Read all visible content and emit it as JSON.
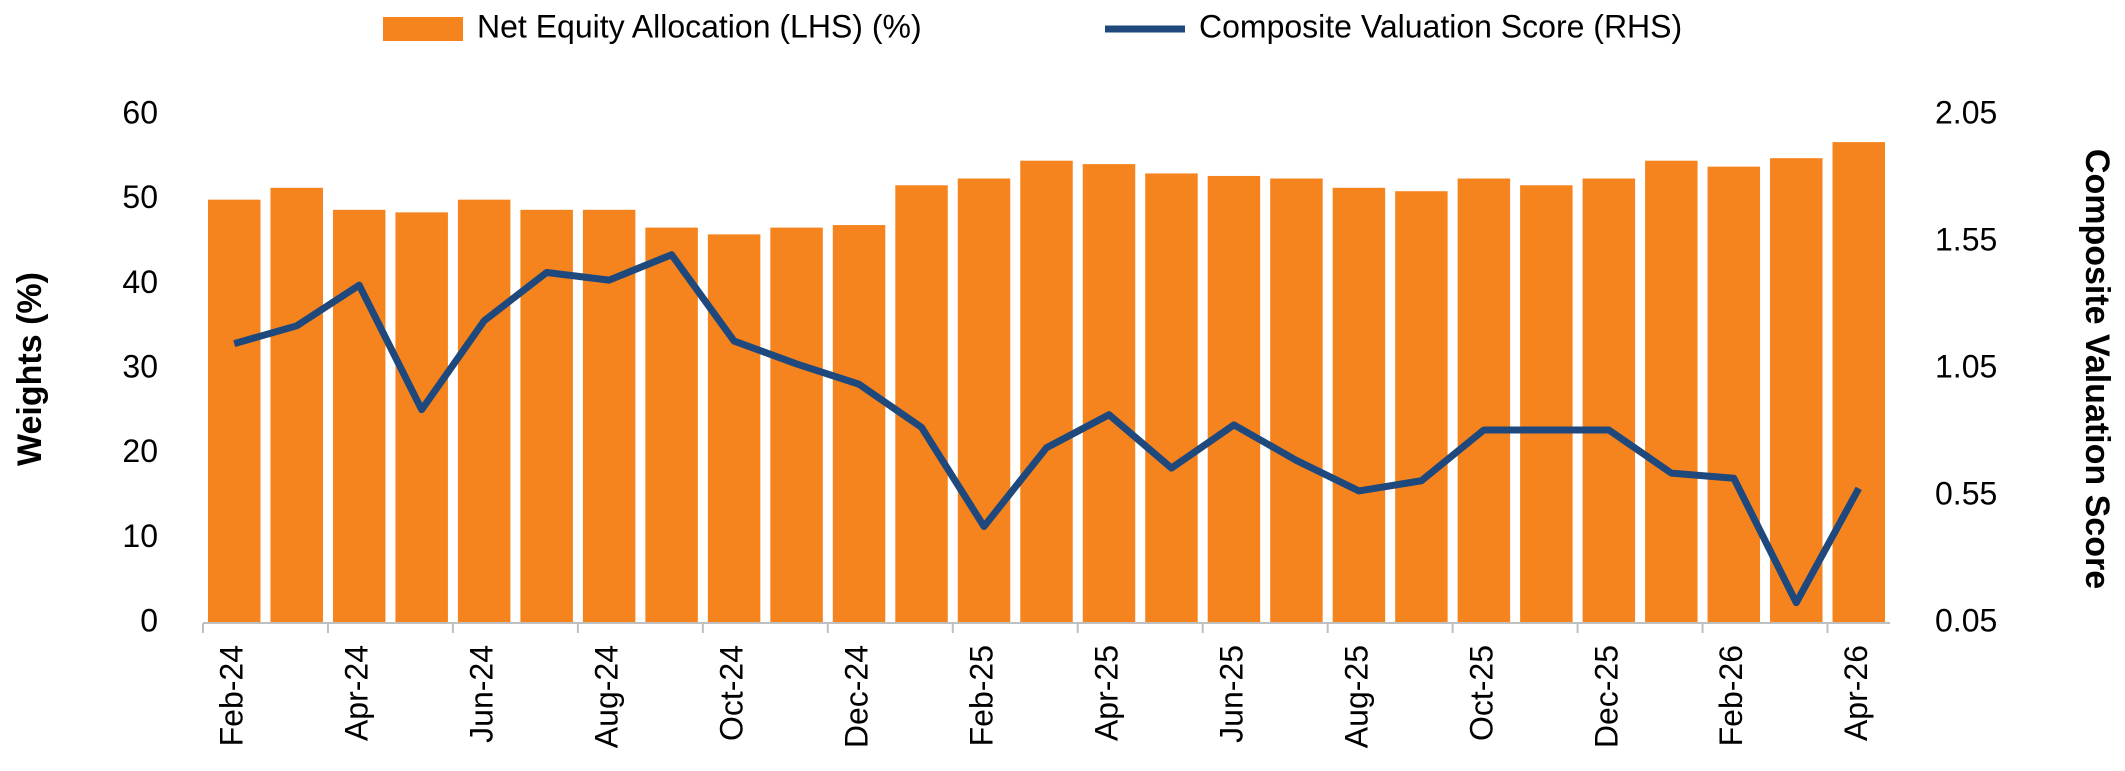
{
  "chart_data": {
    "type": "bar_line",
    "y_label": "Weights (%)",
    "y2_label": "Composite Valuation Score",
    "categories": [
      "Feb-24",
      null,
      "Apr-24",
      null,
      "Jun-24",
      null,
      "Aug-24",
      null,
      "Oct-24",
      null,
      "Dec-24",
      null,
      "Feb-25",
      null,
      "Apr-25",
      null,
      "Jun-25",
      null,
      "Aug-25",
      null,
      "Oct-25",
      null,
      "Dec-25",
      null,
      "Feb-26",
      null,
      "Apr-26"
    ],
    "series": [
      {
        "name": "Net Equity Allocation (LHS) (%)",
        "type": "bar",
        "color": "#f5841f",
        "axis": "y",
        "values": [
          50,
          51.4,
          48.8,
          48.5,
          50,
          48.8,
          48.8,
          46.7,
          45.9,
          46.7,
          47,
          51.7,
          52.5,
          54.6,
          54.2,
          53.1,
          52.8,
          52.5,
          51.4,
          51,
          52.5,
          51.7,
          52.5,
          54.6,
          53.9,
          54.9,
          56.8
        ]
      },
      {
        "name": "Composite Valuation Score (RHS)",
        "type": "line",
        "color": "#1f497d",
        "axis": "y2",
        "values": [
          1.15,
          1.22,
          1.38,
          0.89,
          1.24,
          1.43,
          1.4,
          1.5,
          1.16,
          1.07,
          0.99,
          0.82,
          0.43,
          0.74,
          0.87,
          0.66,
          0.83,
          0.69,
          0.57,
          0.61,
          0.81,
          0.81,
          0.81,
          0.64,
          0.62,
          0.13,
          0.58
        ]
      }
    ],
    "ylim": [
      0,
      60
    ],
    "yticks": [
      0,
      10,
      20,
      30,
      40,
      50,
      60
    ],
    "y2lim": [
      0.05,
      2.05
    ],
    "y2ticks": [
      0.05,
      0.55,
      1.05,
      1.55,
      2.05
    ],
    "legend": "top",
    "grid": false
  }
}
